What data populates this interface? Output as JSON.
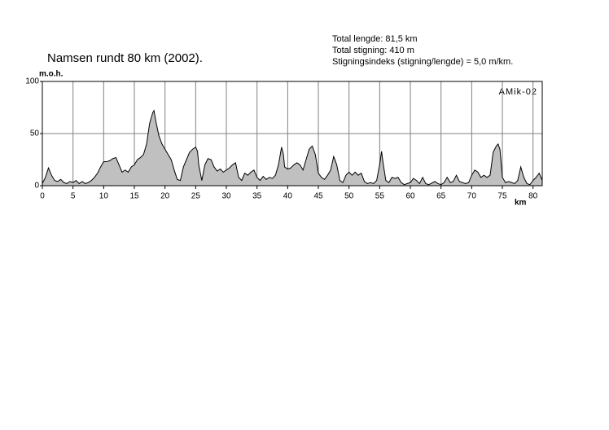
{
  "chart_data": {
    "type": "area",
    "title": "Namsen rundt 80 km (2002).",
    "info": [
      "Total lengde: 81,5 km",
      "Total stigning:  410 m",
      "Stigningsindeks (stigning/lengde) = 5,0 m/km."
    ],
    "y_label": "m.o.h.",
    "x_label": "km",
    "annotation": "AMik-02",
    "color": "#c0c0c0",
    "grid": true,
    "xlim": [
      0,
      81.5
    ],
    "ylim": [
      0,
      100
    ],
    "xticks": [
      0,
      5,
      10,
      15,
      20,
      25,
      30,
      35,
      40,
      45,
      50,
      55,
      60,
      65,
      70,
      75,
      80
    ],
    "yticks": [
      0,
      50,
      100
    ],
    "x": [
      0,
      0.5,
      1,
      1.5,
      2,
      2.5,
      3,
      3.5,
      4,
      4.5,
      5,
      5.5,
      6,
      6.5,
      7,
      7.5,
      8,
      8.5,
      9,
      9.5,
      10,
      10.5,
      11,
      11.5,
      12,
      12.5,
      13,
      13.5,
      14,
      14.5,
      15,
      15.5,
      16,
      16.5,
      17,
      17.5,
      18,
      18.2,
      18.5,
      19,
      19.5,
      20,
      20.5,
      21,
      21.5,
      22,
      22.5,
      23,
      23.5,
      24,
      24.5,
      25,
      25.3,
      25.5,
      26,
      26.5,
      27,
      27.5,
      28,
      28.5,
      29,
      29.5,
      30,
      30.5,
      31,
      31.5,
      32,
      32.5,
      33,
      33.5,
      34,
      34.5,
      35,
      35.5,
      36,
      36.5,
      37,
      37.5,
      38,
      38.5,
      39,
      39.3,
      39.5,
      40,
      40.5,
      41,
      41.5,
      42,
      42.5,
      43,
      43.5,
      44,
      44.5,
      45,
      45.5,
      46,
      46.5,
      47,
      47.5,
      48,
      48.5,
      49,
      49.5,
      50,
      50.5,
      51,
      51.5,
      52,
      52.5,
      53,
      53.5,
      54,
      54.5,
      55,
      55.3,
      55.6,
      56,
      56.5,
      57,
      57.5,
      58,
      58.5,
      59,
      60,
      60.5,
      61,
      61.5,
      62,
      62.5,
      63,
      64,
      64.5,
      65,
      65.5,
      66,
      66.5,
      67,
      67.5,
      68,
      69,
      69.5,
      70,
      70.5,
      71,
      71.5,
      72,
      72.5,
      73,
      73.5,
      74,
      74.3,
      74.6,
      75,
      75.5,
      76,
      76.5,
      77,
      77.5,
      78,
      78.5,
      79,
      79.5,
      80,
      80.5,
      81,
      81.5
    ],
    "values": [
      2,
      8,
      17,
      10,
      5,
      4,
      6,
      3,
      2,
      4,
      3,
      5,
      2,
      4,
      2,
      3,
      5,
      8,
      12,
      18,
      23,
      23,
      24,
      26,
      27,
      20,
      13,
      15,
      13,
      18,
      20,
      25,
      27,
      30,
      40,
      60,
      70,
      72,
      62,
      48,
      40,
      35,
      30,
      25,
      15,
      6,
      5,
      18,
      25,
      32,
      35,
      37,
      33,
      20,
      5,
      20,
      26,
      25,
      18,
      14,
      16,
      13,
      15,
      17,
      20,
      22,
      8,
      5,
      12,
      10,
      13,
      15,
      8,
      5,
      9,
      6,
      8,
      7,
      10,
      20,
      37,
      30,
      18,
      16,
      17,
      20,
      22,
      20,
      15,
      25,
      35,
      38,
      30,
      12,
      8,
      6,
      10,
      15,
      28,
      20,
      5,
      3,
      10,
      13,
      10,
      13,
      10,
      12,
      4,
      2,
      3,
      2,
      5,
      20,
      33,
      20,
      5,
      3,
      8,
      7,
      8,
      3,
      1,
      3,
      7,
      5,
      2,
      8,
      2,
      1,
      4,
      2,
      1,
      3,
      8,
      3,
      4,
      10,
      4,
      2,
      3,
      10,
      15,
      13,
      8,
      10,
      8,
      10,
      32,
      38,
      40,
      35,
      8,
      3,
      4,
      3,
      2,
      5,
      18,
      8,
      2,
      1,
      5,
      8,
      12,
      5
    ]
  }
}
